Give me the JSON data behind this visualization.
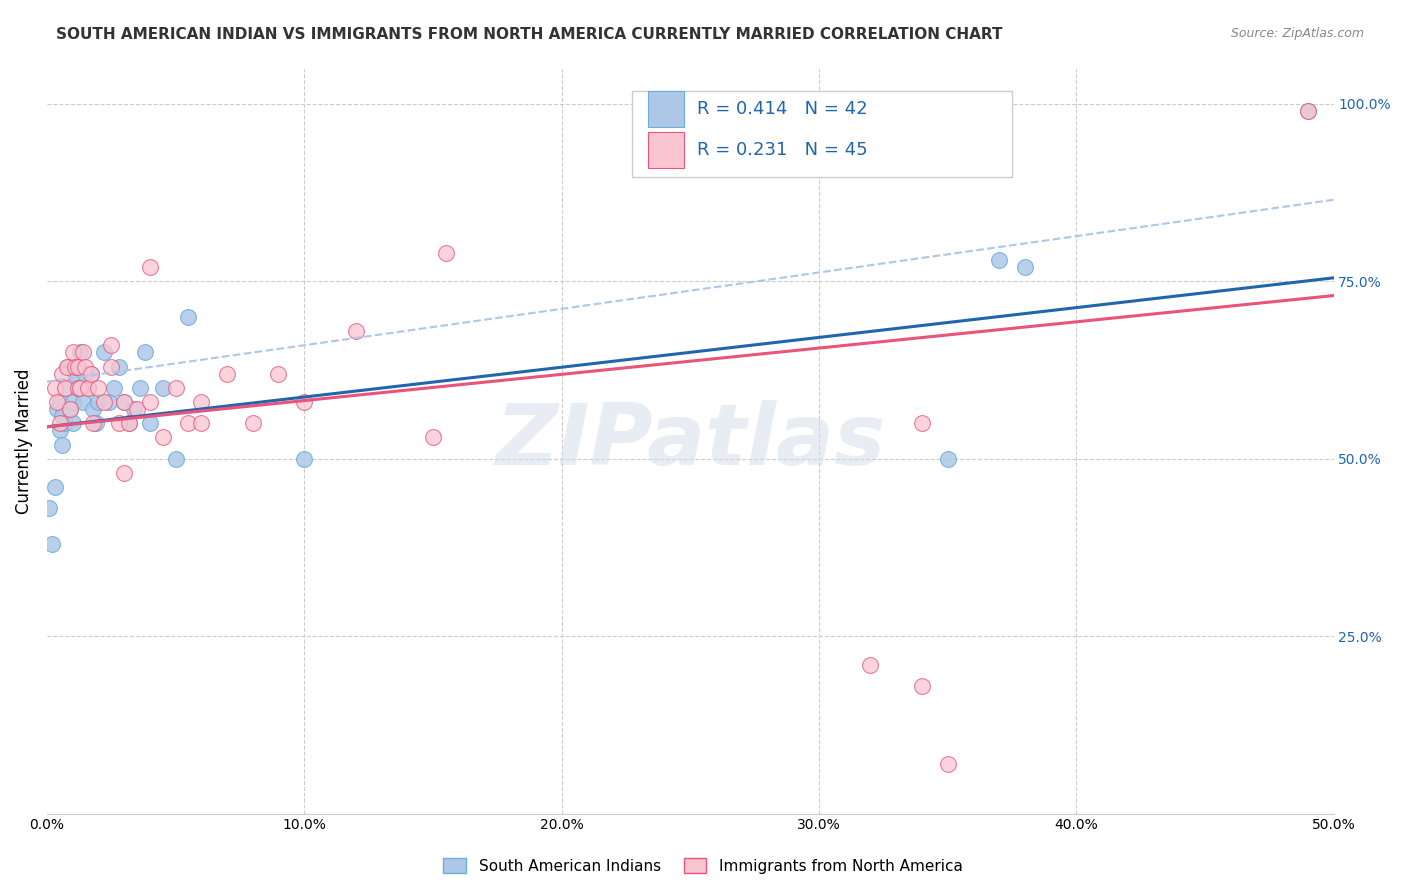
{
  "title": "SOUTH AMERICAN INDIAN VS IMMIGRANTS FROM NORTH AMERICA CURRENTLY MARRIED CORRELATION CHART",
  "source": "Source: ZipAtlas.com",
  "ylabel": "Currently Married",
  "xlim": [
    0.0,
    0.5
  ],
  "ylim": [
    0.0,
    1.05
  ],
  "xtick_values": [
    0.0,
    0.1,
    0.2,
    0.3,
    0.4,
    0.5
  ],
  "xtick_labels": [
    "0.0%",
    "10.0%",
    "20.0%",
    "30.0%",
    "40.0%",
    "50.0%"
  ],
  "ytick_values": [
    0.25,
    0.5,
    0.75,
    1.0
  ],
  "ytick_labels": [
    "25.0%",
    "50.0%",
    "75.0%",
    "100.0%"
  ],
  "blue_face_color": "#aec7e8",
  "blue_edge_color": "#6baed6",
  "pink_face_color": "#f9c5d1",
  "pink_edge_color": "#e8547a",
  "blue_line_color": "#2166ac",
  "pink_line_color": "#e8547a",
  "dash_line_color": "#aec7e8",
  "grid_color": "#cccccc",
  "right_tick_color": "#2166ac",
  "watermark_color": "#d0dce8",
  "title_color": "#333333",
  "source_color": "#888888",
  "blue_scatter_x": [
    0.001,
    0.002,
    0.003,
    0.004,
    0.005,
    0.005,
    0.006,
    0.006,
    0.007,
    0.007,
    0.008,
    0.009,
    0.01,
    0.01,
    0.011,
    0.012,
    0.013,
    0.014,
    0.015,
    0.016,
    0.017,
    0.018,
    0.019,
    0.02,
    0.022,
    0.024,
    0.026,
    0.028,
    0.03,
    0.032,
    0.034,
    0.036,
    0.038,
    0.04,
    0.045,
    0.05,
    0.055,
    0.1,
    0.35,
    0.37,
    0.38,
    0.49
  ],
  "blue_scatter_y": [
    0.43,
    0.38,
    0.46,
    0.57,
    0.58,
    0.54,
    0.56,
    0.52,
    0.55,
    0.6,
    0.63,
    0.57,
    0.55,
    0.58,
    0.62,
    0.6,
    0.65,
    0.58,
    0.62,
    0.6,
    0.62,
    0.57,
    0.55,
    0.58,
    0.65,
    0.58,
    0.6,
    0.63,
    0.58,
    0.55,
    0.57,
    0.6,
    0.65,
    0.55,
    0.6,
    0.5,
    0.7,
    0.5,
    0.5,
    0.78,
    0.77,
    0.99
  ],
  "pink_scatter_x": [
    0.003,
    0.004,
    0.005,
    0.006,
    0.007,
    0.008,
    0.009,
    0.01,
    0.011,
    0.012,
    0.012,
    0.013,
    0.014,
    0.015,
    0.016,
    0.017,
    0.018,
    0.02,
    0.022,
    0.025,
    0.028,
    0.03,
    0.032,
    0.035,
    0.04,
    0.045,
    0.05,
    0.055,
    0.06,
    0.07,
    0.08,
    0.09,
    0.1,
    0.12,
    0.15,
    0.155,
    0.04,
    0.025,
    0.03,
    0.06,
    0.32,
    0.34,
    0.35,
    0.34,
    0.49
  ],
  "pink_scatter_y": [
    0.6,
    0.58,
    0.55,
    0.62,
    0.6,
    0.63,
    0.57,
    0.65,
    0.63,
    0.63,
    0.6,
    0.6,
    0.65,
    0.63,
    0.6,
    0.62,
    0.55,
    0.6,
    0.58,
    0.63,
    0.55,
    0.58,
    0.55,
    0.57,
    0.58,
    0.53,
    0.6,
    0.55,
    0.58,
    0.62,
    0.55,
    0.62,
    0.58,
    0.68,
    0.53,
    0.79,
    0.77,
    0.66,
    0.48,
    0.55,
    0.21,
    0.18,
    0.07,
    0.55,
    0.99
  ],
  "blue_line_x0": 0.0,
  "blue_line_x1": 0.5,
  "blue_line_y0": 0.545,
  "blue_line_y1": 0.755,
  "pink_line_y0": 0.545,
  "pink_line_y1": 0.73,
  "dash_line_y0": 0.66,
  "dash_line_y1": 0.865
}
